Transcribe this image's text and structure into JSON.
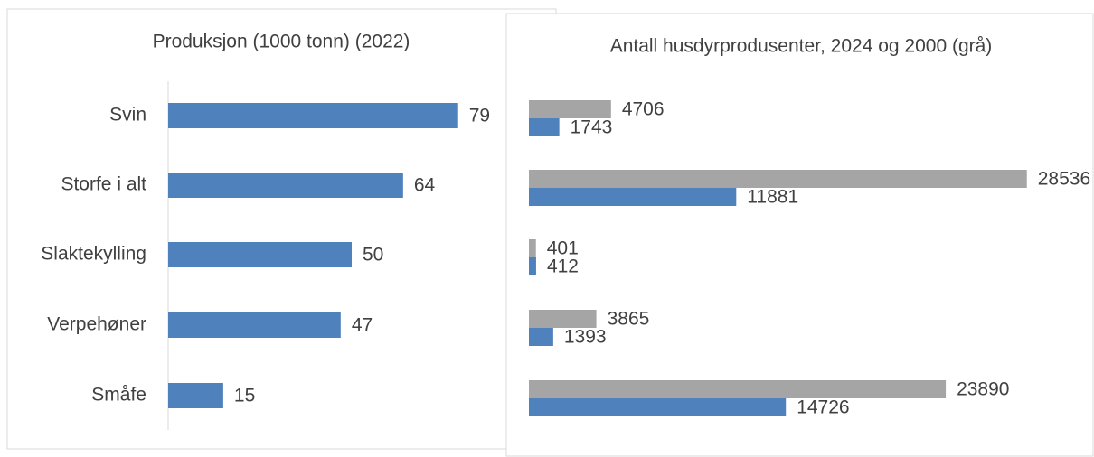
{
  "chart_data": [
    {
      "type": "bar",
      "orientation": "horizontal",
      "title": "Produksjon (1000 tonn) (2022)",
      "categories": [
        "Svin",
        "Storfe i alt",
        "Slaktekylling",
        "Verpehøner",
        "Småfe"
      ],
      "values": [
        79,
        64,
        50,
        47,
        15
      ],
      "color": "#4f81bd",
      "xlim": [
        0,
        100
      ]
    },
    {
      "type": "grouped-bar",
      "orientation": "horizontal",
      "title": "Antall husdyrprodusenter, 2024 og 2000 (grå)",
      "series": [
        {
          "color": "#a5a5a5",
          "values": [
            4706,
            28536,
            401,
            3865,
            23890
          ]
        },
        {
          "color": "#4f81bd",
          "values": [
            1743,
            11881,
            412,
            1393,
            14726
          ]
        }
      ],
      "xlim": [
        0,
        30000
      ]
    }
  ]
}
